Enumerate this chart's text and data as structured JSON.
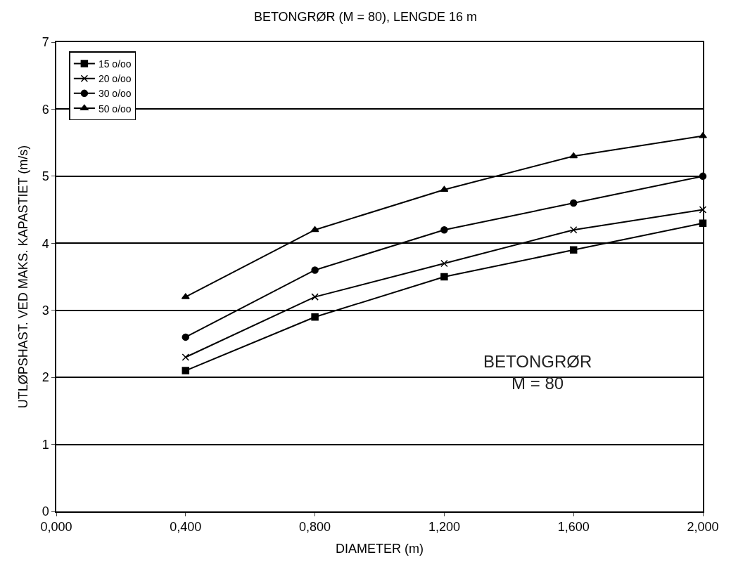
{
  "chart_data": {
    "type": "line",
    "title": "BETONGRØR (M = 80), LENGDE 16 m",
    "xlabel": "DIAMETER (m)",
    "ylabel": "UTLØPSHAST. VED MAKS. KAPASTIET (m/s)",
    "x": [
      0.4,
      0.8,
      1.2,
      1.6,
      2.0
    ],
    "series": [
      {
        "name": "15 o/oo",
        "color": "#000000",
        "marker": "square",
        "values": [
          2.1,
          2.9,
          3.5,
          3.9,
          4.3
        ]
      },
      {
        "name": "20 o/oo",
        "color": "#000000",
        "marker": "cross",
        "values": [
          2.3,
          3.2,
          3.7,
          4.2,
          4.5
        ]
      },
      {
        "name": "30 o/oo",
        "color": "#000000",
        "marker": "circle",
        "values": [
          2.6,
          3.6,
          4.2,
          4.6,
          5.0
        ]
      },
      {
        "name": "50 o/oo",
        "color": "#000000",
        "marker": "triangle",
        "values": [
          3.2,
          4.2,
          4.8,
          5.3,
          5.6
        ]
      }
    ],
    "xlim": [
      0,
      2.0
    ],
    "xticks": [
      {
        "value": 0,
        "label": "0,000"
      },
      {
        "value": 0.4,
        "label": "0,400"
      },
      {
        "value": 0.8,
        "label": "0,800"
      },
      {
        "value": 1.2,
        "label": "1,200"
      },
      {
        "value": 1.6,
        "label": "1,600"
      },
      {
        "value": 2.0,
        "label": "2,000"
      }
    ],
    "ylim": [
      0,
      7
    ],
    "yticks": [
      0,
      1,
      2,
      3,
      4,
      5,
      6,
      7
    ],
    "grid": "y",
    "legend": "top left",
    "line_style": "solid",
    "annotations": [
      "BETONGRØR\nM = 80"
    ]
  }
}
